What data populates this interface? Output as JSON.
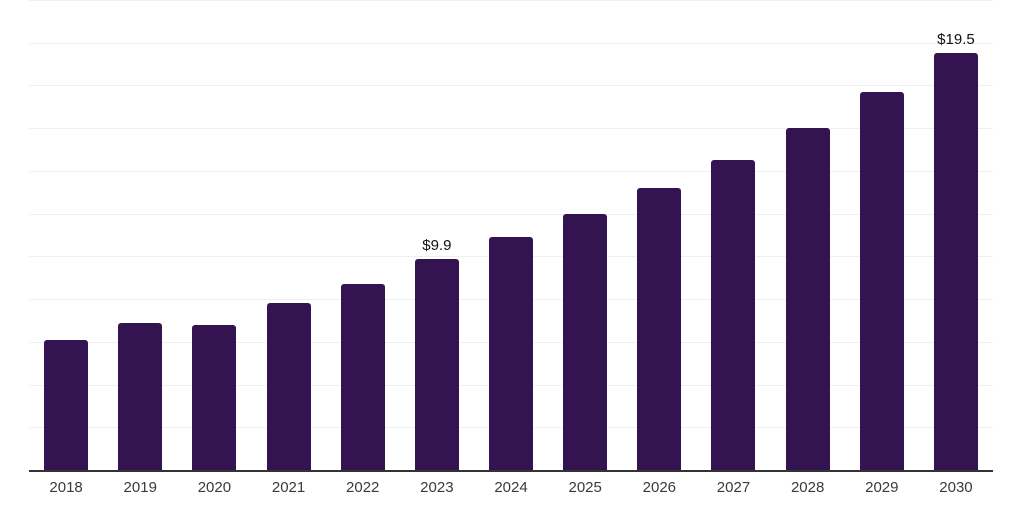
{
  "chart_data": {
    "type": "bar",
    "title": "",
    "xlabel": "",
    "ylabel": "",
    "categories": [
      "2018",
      "2019",
      "2020",
      "2021",
      "2022",
      "2023",
      "2024",
      "2025",
      "2026",
      "2027",
      "2028",
      "2029",
      "2030"
    ],
    "values": [
      6.1,
      6.9,
      6.8,
      7.8,
      8.7,
      9.9,
      10.9,
      12.0,
      13.2,
      14.5,
      16.0,
      17.7,
      19.5
    ],
    "point_labels": [
      "",
      "",
      "",
      "",
      "",
      "$9.9",
      "",
      "",
      "",
      "",
      "",
      "",
      "$19.5"
    ],
    "ylim": [
      0,
      22
    ],
    "gridline_step": 2,
    "grid": "horizontal-only",
    "legend": "none",
    "y_tick_labels": "none",
    "colors": {
      "bar": "#341450",
      "axis_line": "#333333",
      "gridline": "#efefef",
      "tick_label": "#3a3a3a",
      "data_label": "#111111",
      "background": "#ffffff"
    }
  }
}
